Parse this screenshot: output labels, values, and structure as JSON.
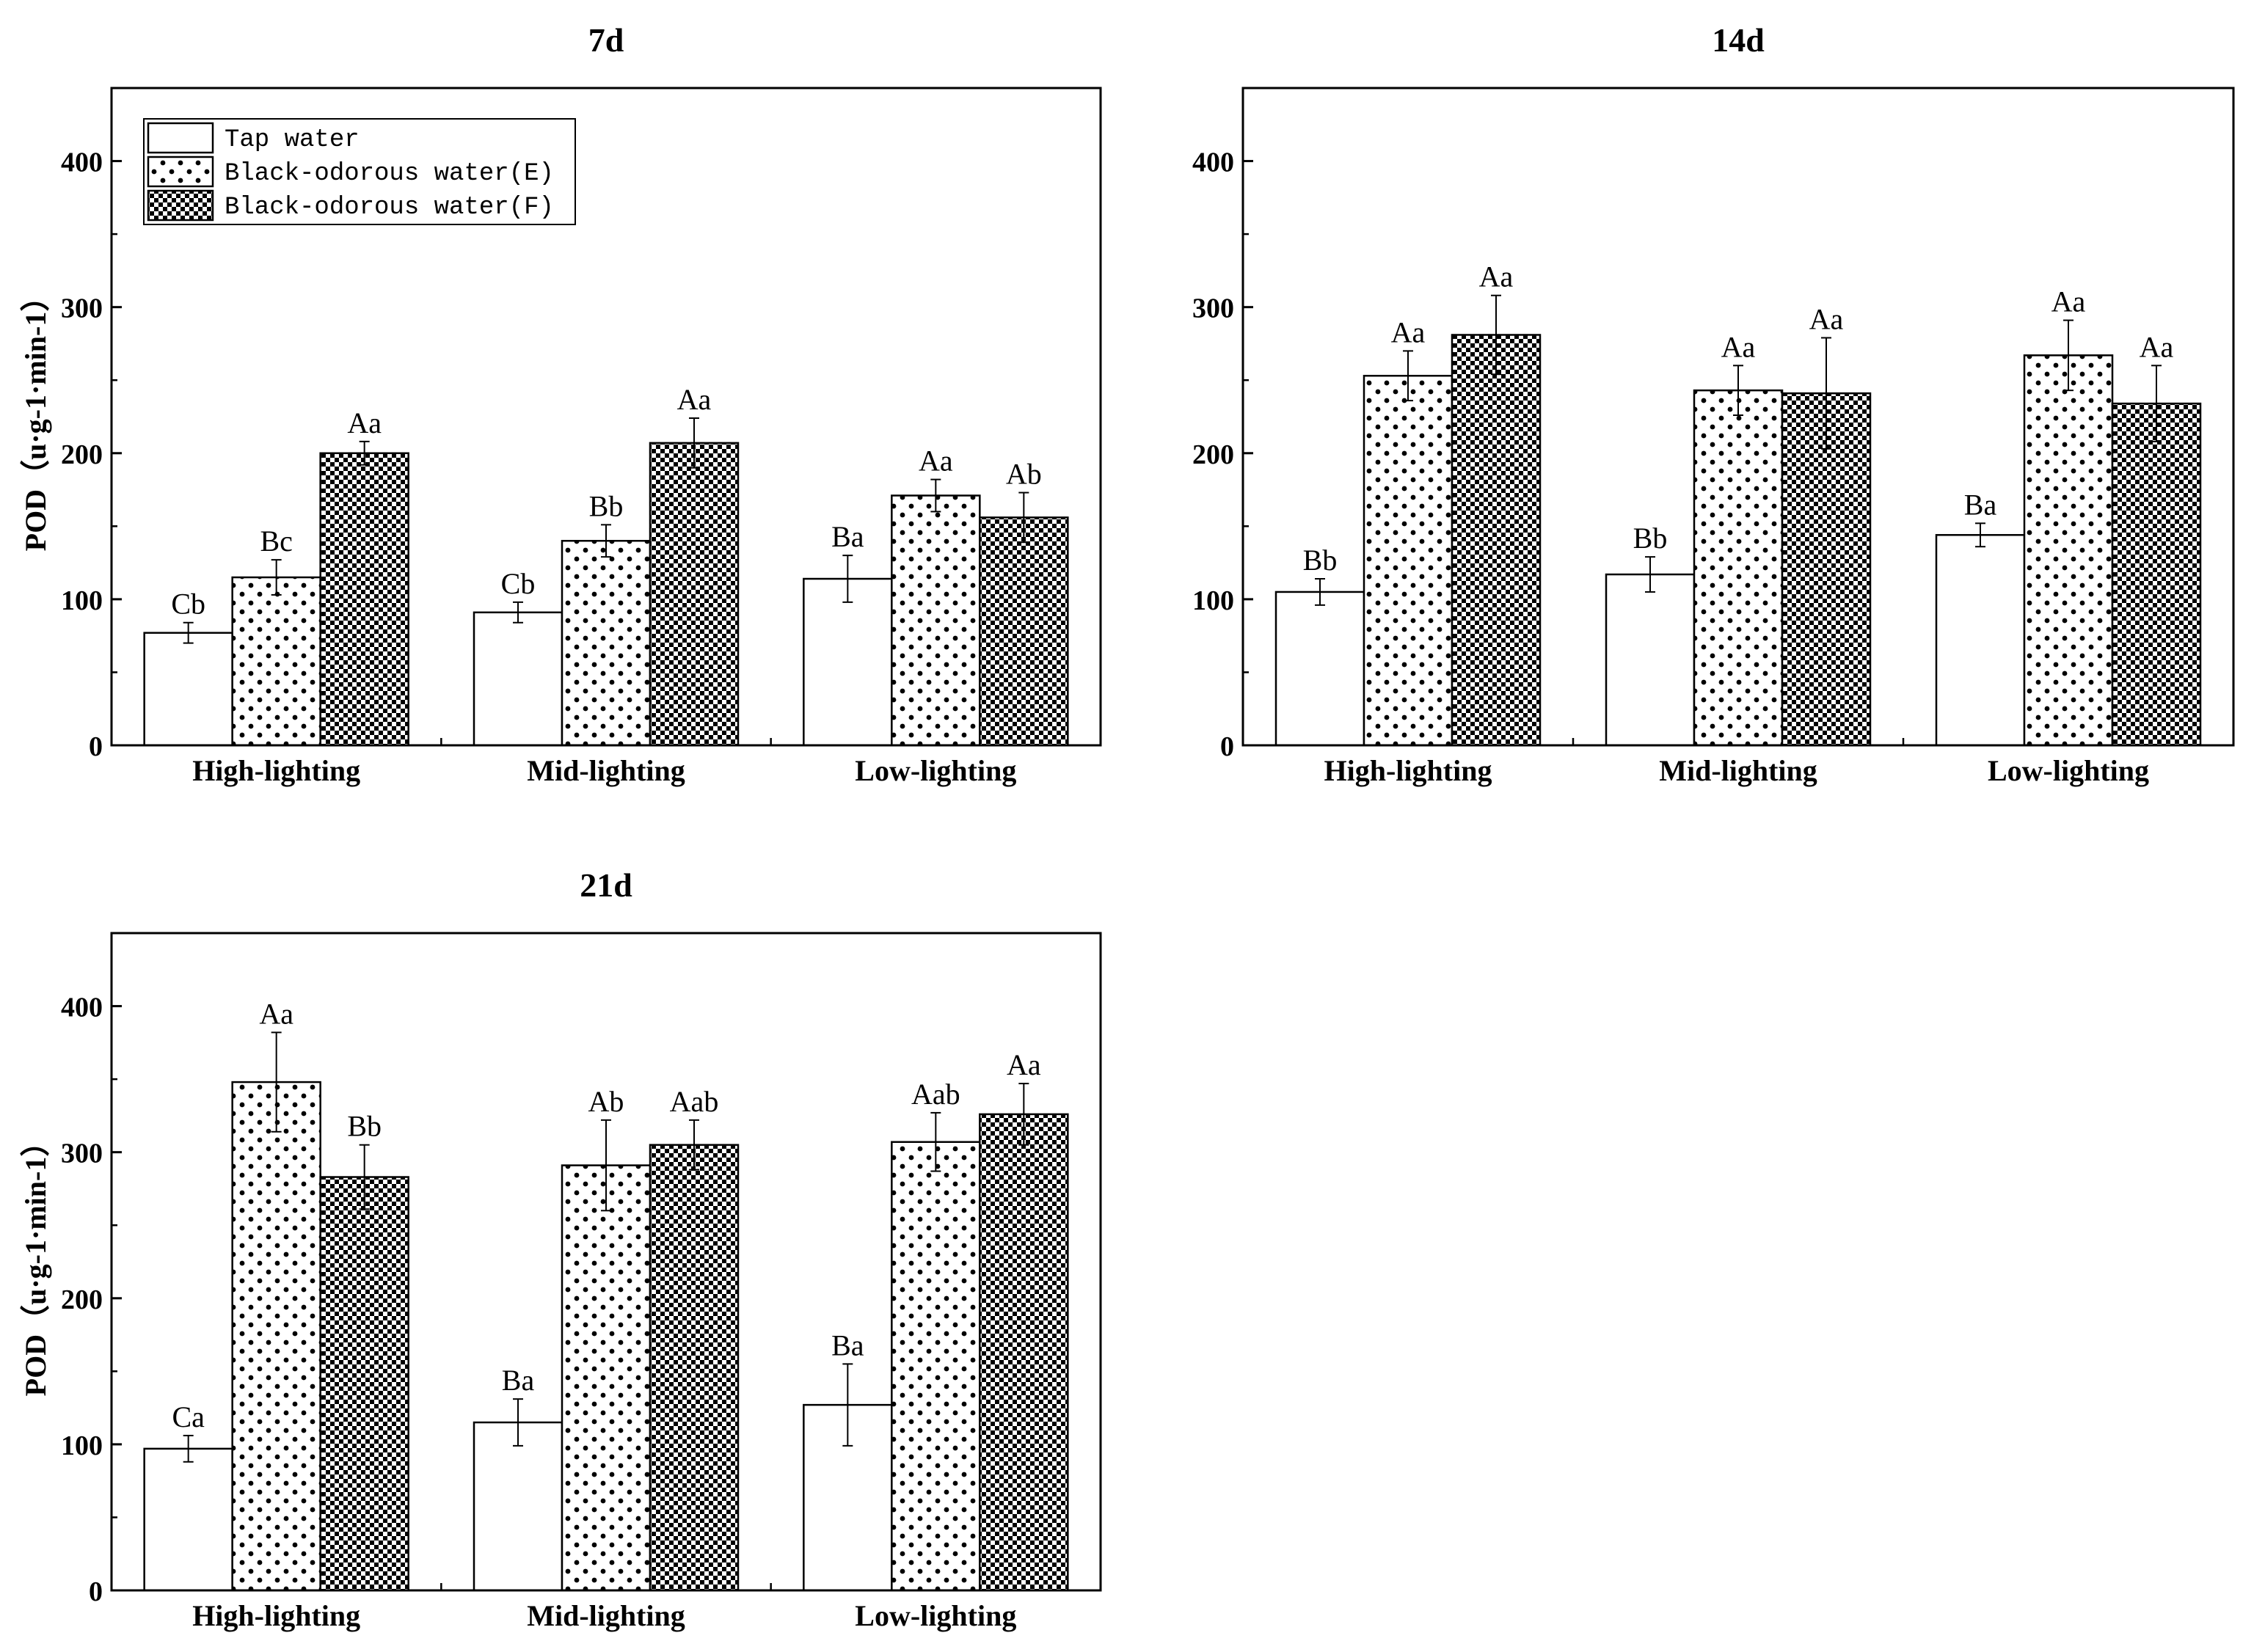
{
  "figure": {
    "y_tick_labels": [
      "0",
      "100",
      "200",
      "300",
      "400"
    ],
    "legend_entries": [
      {
        "name": "Tap water",
        "pattern": "solid-white"
      },
      {
        "name": "Black-odorous water(E)",
        "pattern": "dots"
      },
      {
        "name": "Black-odorous water(F)",
        "pattern": "checker"
      }
    ],
    "colors": {
      "ink": "#000000",
      "background": "#ffffff"
    }
  },
  "chart_data": [
    {
      "type": "bar",
      "title": "7d",
      "xlabel": "",
      "ylabel": "POD（u·g-1·min-1）",
      "ylim": [
        0,
        450
      ],
      "yticks": [
        0,
        100,
        200,
        300,
        400
      ],
      "grid": false,
      "legend": "top-left",
      "categories": [
        "High-lighting",
        "Mid-lighting",
        "Low-lighting"
      ],
      "series": [
        {
          "name": "Tap water",
          "values": [
            77,
            91,
            114
          ],
          "errors": [
            7,
            7,
            16
          ],
          "letters": [
            "Cb",
            "Cb",
            "Ba"
          ]
        },
        {
          "name": "Black-odorous water(E)",
          "values": [
            115,
            140,
            171
          ],
          "errors": [
            12,
            11,
            11
          ],
          "letters": [
            "Bc",
            "Bb",
            "Aa"
          ]
        },
        {
          "name": "Black-odorous water(F)",
          "values": [
            200,
            207,
            156
          ],
          "errors": [
            8,
            17,
            17
          ],
          "letters": [
            "Aa",
            "Aa",
            "Ab"
          ]
        }
      ]
    },
    {
      "type": "bar",
      "title": "14d",
      "xlabel": "",
      "ylabel": "",
      "ylim": [
        0,
        450
      ],
      "yticks": [
        0,
        100,
        200,
        300,
        400
      ],
      "grid": false,
      "legend": "none",
      "categories": [
        "High-lighting",
        "Mid-lighting",
        "Low-lighting"
      ],
      "series": [
        {
          "name": "Tap water",
          "values": [
            105,
            117,
            144
          ],
          "errors": [
            9,
            12,
            8
          ],
          "letters": [
            "Bb",
            "Bb",
            "Ba"
          ]
        },
        {
          "name": "Black-odorous water(E)",
          "values": [
            253,
            243,
            267
          ],
          "errors": [
            17,
            17,
            24
          ],
          "letters": [
            "Aa",
            "Aa",
            "Aa"
          ]
        },
        {
          "name": "Black-odorous water(F)",
          "values": [
            281,
            241,
            234
          ],
          "errors": [
            27,
            38,
            26
          ],
          "letters": [
            "Aa",
            "Aa",
            "Aa"
          ]
        }
      ]
    },
    {
      "type": "bar",
      "title": "21d",
      "xlabel": "",
      "ylabel": "POD（u·g-1·min-1）",
      "ylim": [
        0,
        450
      ],
      "yticks": [
        0,
        100,
        200,
        300,
        400
      ],
      "grid": false,
      "legend": "none",
      "categories": [
        "High-lighting",
        "Mid-lighting",
        "Low-lighting"
      ],
      "series": [
        {
          "name": "Tap water",
          "values": [
            97,
            115,
            127
          ],
          "errors": [
            9,
            16,
            28
          ],
          "letters": [
            "Ca",
            "Ba",
            "Ba"
          ]
        },
        {
          "name": "Black-odorous water(E)",
          "values": [
            348,
            291,
            307
          ],
          "errors": [
            34,
            31,
            20
          ],
          "letters": [
            "Aa",
            "Ab",
            "Aab"
          ]
        },
        {
          "name": "Black-odorous water(F)",
          "values": [
            283,
            305,
            326
          ],
          "errors": [
            22,
            17,
            21
          ],
          "letters": [
            "Bb",
            "Aab",
            "Aa"
          ]
        }
      ]
    }
  ]
}
